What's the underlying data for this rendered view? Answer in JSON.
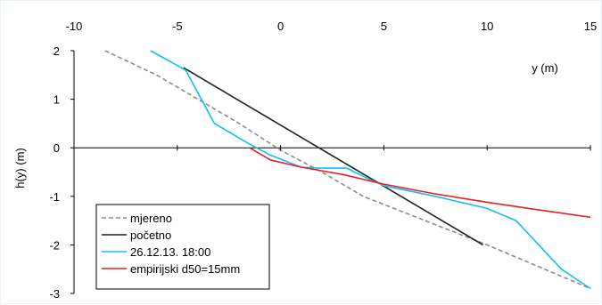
{
  "chart_data": {
    "type": "line",
    "xlabel": "y (m)",
    "ylabel": "h(y)  (m)",
    "xlim": [
      -10,
      15
    ],
    "ylim": [
      -3,
      2
    ],
    "x_ticks": [
      -10,
      -5,
      0,
      5,
      10,
      15
    ],
    "y_ticks": [
      -3,
      -2,
      -1,
      0,
      1,
      2
    ],
    "x_axis_position": "top",
    "grid": false,
    "legend_position": "bottom-left",
    "series": [
      {
        "name": "mjereno",
        "color": "#8c8c8c",
        "dash": "dashed",
        "x": [
          -8.5,
          -6,
          -4,
          -2,
          0,
          2,
          4,
          10,
          15
        ],
        "y": [
          2.0,
          1.5,
          1.0,
          0.5,
          -0.05,
          -0.5,
          -1.0,
          -2.0,
          -2.9
        ]
      },
      {
        "name": "početno",
        "color": "#222222",
        "dash": "solid",
        "x": [
          -4.7,
          9.8
        ],
        "y": [
          1.65,
          -2.0
        ]
      },
      {
        "name": "26.12.13. 18:00",
        "color": "#10c0ee",
        "dash": "solid",
        "x": [
          -6.3,
          -4.6,
          -3.2,
          -1.6,
          -0.5,
          1.0,
          1.8,
          3.2,
          4.3,
          5.0,
          7.5,
          10.0,
          11.4,
          13.6,
          15.0
        ],
        "y": [
          2.0,
          1.6,
          0.5,
          0.1,
          -0.15,
          -0.4,
          -0.42,
          -0.42,
          -0.65,
          -0.78,
          -1.0,
          -1.25,
          -1.5,
          -2.5,
          -2.9
        ]
      },
      {
        "name": "empirijski d50=15mm",
        "color": "#e82020",
        "dash": "solid",
        "x": [
          -1.5,
          -0.5,
          1.0,
          3.0,
          5.0,
          7.5,
          10.0,
          12.5,
          15.0
        ],
        "y": [
          0.0,
          -0.25,
          -0.4,
          -0.55,
          -0.75,
          -0.95,
          -1.12,
          -1.28,
          -1.43
        ]
      }
    ]
  }
}
